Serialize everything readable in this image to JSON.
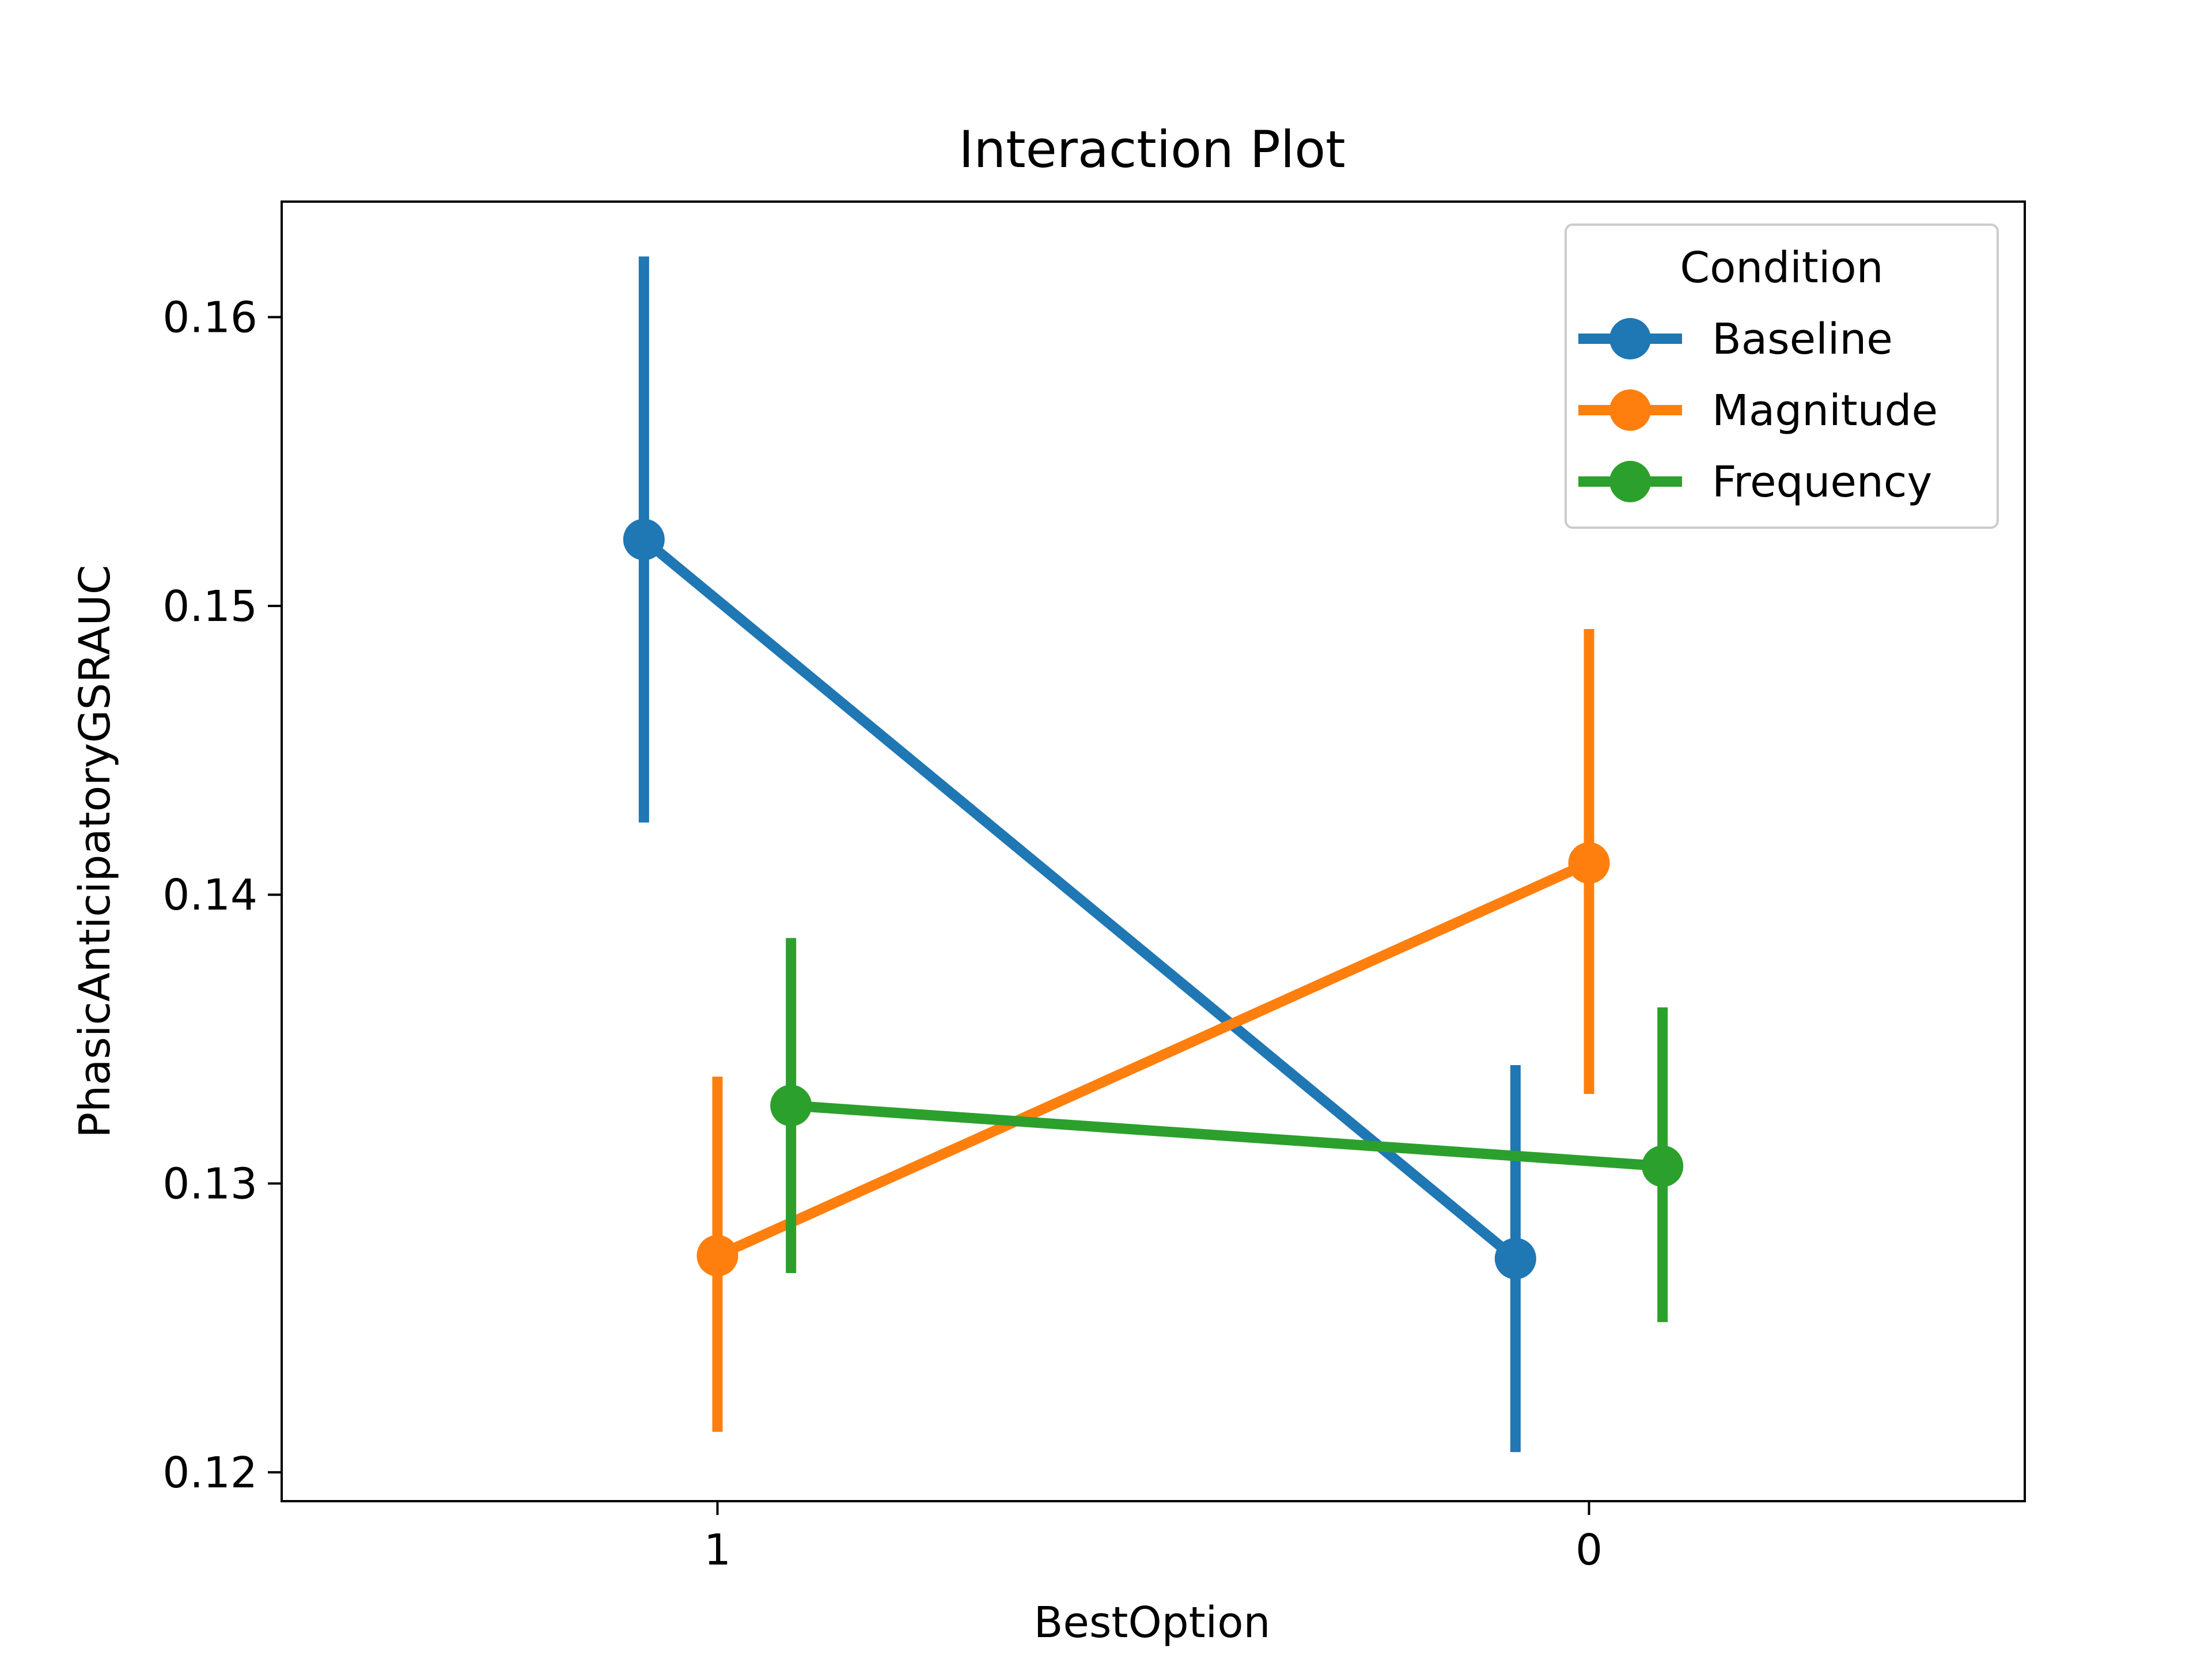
{
  "chart_data": {
    "type": "line",
    "title": "Interaction Plot",
    "xlabel": "BestOption",
    "ylabel": "PhasicAnticipatoryGSRAUC",
    "categories": [
      "1",
      "0"
    ],
    "ylim": [
      0.119,
      0.164
    ],
    "yticks": [
      0.12,
      0.13,
      0.14,
      0.15,
      0.16
    ],
    "ytick_labels": [
      "0.12",
      "0.13",
      "0.14",
      "0.15",
      "0.16"
    ],
    "legend": {
      "title": "Condition",
      "placement": "top-right"
    },
    "grid": false,
    "series": [
      {
        "name": "Baseline",
        "color": "#1f77b4",
        "values": [
          0.1523,
          0.1274
        ],
        "ci_low": [
          0.1425,
          0.1207
        ],
        "ci_high": [
          0.1621,
          0.1341
        ]
      },
      {
        "name": "Magnitude",
        "color": "#ff7f0e",
        "values": [
          0.1275,
          0.1411
        ],
        "ci_low": [
          0.1214,
          0.1331
        ],
        "ci_high": [
          0.1337,
          0.1492
        ]
      },
      {
        "name": "Frequency",
        "color": "#2ca02c",
        "values": [
          0.1327,
          0.1306
        ],
        "ci_low": [
          0.1269,
          0.1252
        ],
        "ci_high": [
          0.1385,
          0.1361
        ]
      }
    ]
  }
}
